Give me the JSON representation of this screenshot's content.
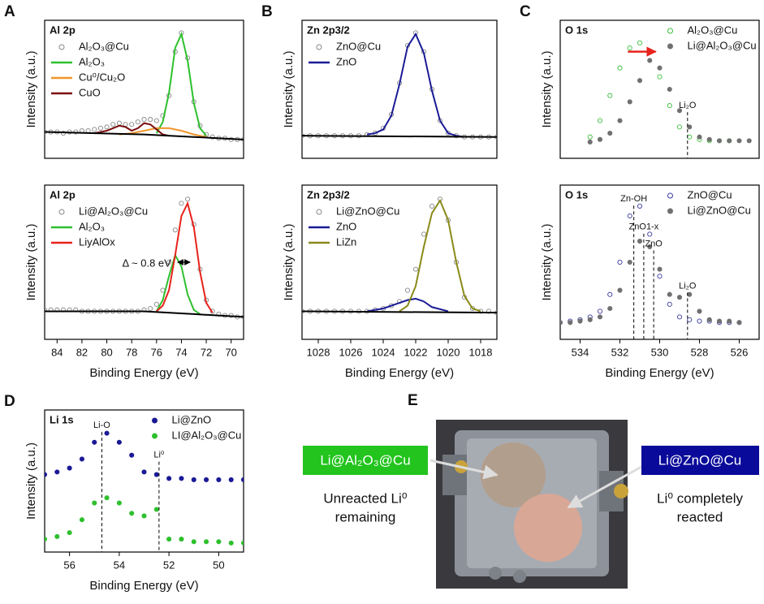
{
  "chart_data": [
    {
      "type": "line",
      "panel_label": "A",
      "title": "Al 2p",
      "y_label": "Intensity (a.u.)",
      "xlim": [
        85,
        69
      ],
      "ylim": [
        0,
        1.1
      ],
      "legend": "upper left",
      "series": [
        {
          "name": "Al₂O₃@Cu",
          "style": "open-circle",
          "color": "#888888",
          "x": [
            85,
            84.5,
            84,
            83.5,
            83,
            82.5,
            82,
            81.5,
            81,
            80.5,
            80,
            79.5,
            79,
            78.5,
            78,
            77.5,
            77,
            76.5,
            76,
            75.5,
            75,
            74.5,
            74,
            73.5,
            73,
            72.5,
            72,
            71.5,
            71,
            70.5,
            70,
            69.5,
            69
          ],
          "values": [
            0.21,
            0.21,
            0.21,
            0.2,
            0.21,
            0.21,
            0.22,
            0.22,
            0.23,
            0.24,
            0.25,
            0.27,
            0.28,
            0.27,
            0.27,
            0.29,
            0.31,
            0.31,
            0.3,
            0.34,
            0.5,
            0.85,
            1.0,
            0.8,
            0.45,
            0.26,
            0.19,
            0.17,
            0.16,
            0.16,
            0.15,
            0.15,
            0.15
          ]
        },
        {
          "name": "Al₂O₃",
          "style": "line",
          "color": "#2ec02e",
          "x": [
            76,
            75.5,
            75,
            74.5,
            74,
            73.5,
            73,
            72.5,
            72
          ],
          "values": [
            0.2,
            0.29,
            0.52,
            0.88,
            0.99,
            0.78,
            0.44,
            0.24,
            0.18
          ]
        },
        {
          "name": "Cu⁰/Cu₂O",
          "style": "line",
          "color": "#f0962a",
          "x": [
            79,
            78,
            77,
            76,
            75,
            74,
            73,
            72
          ],
          "values": [
            0.19,
            0.2,
            0.22,
            0.24,
            0.24,
            0.22,
            0.19,
            0.17
          ]
        },
        {
          "name": "CuO",
          "style": "line",
          "color": "#7a0c0c",
          "x": [
            81,
            80,
            79,
            78.5,
            78,
            77.5,
            77,
            76.5,
            76,
            75.5,
            75
          ],
          "values": [
            0.2,
            0.22,
            0.26,
            0.25,
            0.22,
            0.24,
            0.28,
            0.27,
            0.23,
            0.19,
            0.18
          ]
        },
        {
          "style": "line",
          "color": "#000000",
          "x": [
            85,
            77,
            73,
            69
          ],
          "values": [
            0.21,
            0.19,
            0.17,
            0.15
          ]
        }
      ]
    },
    {
      "type": "line",
      "title": "Al 2p",
      "y_label": "Intensity (a.u.)",
      "x_label": "Binding Energy (eV)",
      "xlim": [
        85,
        69
      ],
      "ylim": [
        0,
        1.1
      ],
      "xticks": [
        84,
        82,
        80,
        78,
        76,
        74,
        72,
        70
      ],
      "legend": "upper left",
      "series": [
        {
          "name": "Li@Al₂O₃@Cu",
          "style": "open-circle",
          "color": "#888888",
          "x": [
            85,
            84.5,
            84,
            83.5,
            83,
            82.5,
            82,
            81.5,
            81,
            80.5,
            80,
            79.5,
            79,
            78.5,
            78,
            77.5,
            77,
            76.5,
            76,
            75.5,
            75,
            74.5,
            74,
            73.5,
            73,
            72.5,
            72,
            71.5,
            71,
            70.5,
            70,
            69.5,
            69
          ],
          "values": [
            0.21,
            0.21,
            0.21,
            0.21,
            0.21,
            0.21,
            0.2,
            0.2,
            0.2,
            0.2,
            0.2,
            0.2,
            0.2,
            0.2,
            0.2,
            0.2,
            0.21,
            0.22,
            0.25,
            0.35,
            0.55,
            0.78,
            0.97,
            1.0,
            0.82,
            0.5,
            0.28,
            0.2,
            0.18,
            0.17,
            0.17,
            0.16,
            0.16
          ]
        },
        {
          "name": "Al₂O₃",
          "style": "line",
          "color": "#2ec02e",
          "x": [
            76,
            75.5,
            75,
            74.5,
            74,
            73.5,
            73,
            72.5
          ],
          "values": [
            0.2,
            0.28,
            0.45,
            0.6,
            0.52,
            0.32,
            0.21,
            0.18
          ]
        },
        {
          "name": "LiyAlOx",
          "style": "line",
          "color": "#e8221c",
          "x": [
            76,
            75.5,
            75,
            74.5,
            74,
            73.5,
            73,
            72.5,
            72,
            71.5
          ],
          "values": [
            0.2,
            0.24,
            0.35,
            0.6,
            0.88,
            0.97,
            0.8,
            0.48,
            0.26,
            0.19
          ]
        },
        {
          "style": "line",
          "color": "#000000",
          "x": [
            85,
            77,
            73,
            69
          ],
          "values": [
            0.2,
            0.2,
            0.18,
            0.16
          ]
        }
      ],
      "annotations": [
        {
          "text": "Δ ~ 0.8 eV",
          "x": [
            74.3,
            73.3
          ],
          "y": 0.55,
          "arrow": "double",
          "color": "#000000"
        }
      ]
    },
    {
      "type": "line",
      "panel_label": "B",
      "title": "Zn 2p3/2",
      "y_label": "Intensity (a.u.)",
      "xlim": [
        1029,
        1017
      ],
      "ylim": [
        0,
        1.1
      ],
      "legend": "upper left",
      "series": [
        {
          "name": "ZnO@Cu",
          "style": "open-circle",
          "color": "#888888",
          "x": [
            1029,
            1028.5,
            1028,
            1027.5,
            1027,
            1026.5,
            1026,
            1025.5,
            1025,
            1024.5,
            1024,
            1023.5,
            1023,
            1022.5,
            1022,
            1021.5,
            1021,
            1020.5,
            1020,
            1019.5,
            1019,
            1018.5,
            1018,
            1017.5,
            1017
          ],
          "values": [
            0.18,
            0.18,
            0.18,
            0.18,
            0.18,
            0.18,
            0.18,
            0.18,
            0.19,
            0.2,
            0.24,
            0.35,
            0.6,
            0.9,
            1.0,
            0.85,
            0.55,
            0.3,
            0.2,
            0.18,
            0.17,
            0.17,
            0.17,
            0.17,
            0.17
          ]
        },
        {
          "name": "ZnO",
          "style": "line",
          "color": "#1a1a96",
          "x": [
            1025,
            1024.5,
            1024,
            1023.5,
            1023,
            1022.5,
            1022,
            1021.5,
            1021,
            1020.5,
            1020,
            1019.5,
            1019
          ],
          "values": [
            0.19,
            0.2,
            0.23,
            0.34,
            0.59,
            0.89,
            0.99,
            0.84,
            0.54,
            0.3,
            0.2,
            0.18,
            0.17
          ]
        },
        {
          "style": "line",
          "color": "#000000",
          "x": [
            1029,
            1017
          ],
          "values": [
            0.18,
            0.17
          ]
        }
      ]
    },
    {
      "type": "line",
      "title": "Zn 2p3/2",
      "y_label": "Intensity (a.u.)",
      "x_label": "Binding Energy (eV)",
      "xlim": [
        1029,
        1017
      ],
      "ylim": [
        0,
        1.1
      ],
      "xticks": [
        1028,
        1026,
        1024,
        1022,
        1020,
        1018
      ],
      "legend": "upper left",
      "series": [
        {
          "name": "Li@ZnO@Cu",
          "style": "open-circle",
          "color": "#888888",
          "x": [
            1029,
            1028.5,
            1028,
            1027.5,
            1027,
            1026.5,
            1026,
            1025.5,
            1025,
            1024.5,
            1024,
            1023.5,
            1023,
            1022.5,
            1022,
            1021.5,
            1021,
            1020.5,
            1020,
            1019.5,
            1019,
            1018.5,
            1018,
            1017.5,
            1017
          ],
          "values": [
            0.2,
            0.2,
            0.2,
            0.2,
            0.2,
            0.2,
            0.2,
            0.2,
            0.2,
            0.21,
            0.22,
            0.24,
            0.27,
            0.35,
            0.5,
            0.75,
            0.95,
            1.0,
            0.85,
            0.55,
            0.3,
            0.22,
            0.2,
            0.2,
            0.19
          ]
        },
        {
          "name": "ZnO",
          "style": "line",
          "color": "#1a1a96",
          "x": [
            1025,
            1024,
            1023,
            1022.5,
            1022,
            1021.5,
            1021,
            1020
          ],
          "values": [
            0.2,
            0.22,
            0.26,
            0.28,
            0.29,
            0.27,
            0.23,
            0.2
          ]
        },
        {
          "name": "LiZn",
          "style": "line",
          "color": "#8a8a1a",
          "x": [
            1023,
            1022.5,
            1022,
            1021.5,
            1021,
            1020.5,
            1020,
            1019.5,
            1019,
            1018.5,
            1018
          ],
          "values": [
            0.2,
            0.24,
            0.38,
            0.66,
            0.9,
            0.99,
            0.85,
            0.55,
            0.31,
            0.22,
            0.2
          ]
        },
        {
          "style": "line",
          "color": "#000000",
          "x": [
            1029,
            1017
          ],
          "values": [
            0.2,
            0.19
          ]
        }
      ]
    },
    {
      "type": "line",
      "panel_label": "C",
      "title": "O 1s",
      "y_label": "Intensity (a.u.)",
      "xlim": [
        535,
        525
      ],
      "ylim": [
        0,
        1.1
      ],
      "legend": "upper right",
      "series": [
        {
          "name": "Al₂O₃@Cu",
          "style": "open-circle",
          "color": "#3cbf3c",
          "x": [
            533.5,
            533,
            532.5,
            532,
            531.5,
            531,
            530.5,
            530,
            529.5,
            529,
            528.5,
            528,
            527.5,
            527,
            526.5
          ],
          "values": [
            0.17,
            0.3,
            0.5,
            0.72,
            0.88,
            0.92,
            0.85,
            0.65,
            0.42,
            0.25,
            0.17,
            0.15,
            0.14,
            0.14,
            0.14
          ]
        },
        {
          "name": "Li@Al₂O₃@Cu",
          "style": "filled-circle",
          "color": "#707070",
          "x": [
            533.5,
            533,
            532.5,
            532,
            531.5,
            531,
            530.5,
            530,
            529.5,
            529,
            528.5,
            528,
            527.5,
            527,
            526.5,
            526,
            525.5
          ],
          "values": [
            0.13,
            0.15,
            0.2,
            0.3,
            0.45,
            0.62,
            0.78,
            0.72,
            0.55,
            0.38,
            0.25,
            0.17,
            0.15,
            0.14,
            0.14,
            0.14,
            0.14
          ]
        }
      ],
      "annotations": [
        {
          "x": [
            531.6,
            530.2
          ],
          "y": 0.85,
          "arrow": "single",
          "color": "#e8221c"
        },
        {
          "text": "Li₂O",
          "x": 528.6,
          "y": 0.42
        }
      ]
    },
    {
      "type": "line",
      "title": "O 1s",
      "y_label": "Intensity (a.u.)",
      "x_label": "Binding Energy (eV)",
      "xlim": [
        535,
        525
      ],
      "ylim": [
        0,
        1.1
      ],
      "xticks": [
        534,
        532,
        530,
        528,
        526
      ],
      "legend": "upper right",
      "series": [
        {
          "name": "ZnO@Cu",
          "style": "open-circle",
          "color": "#3a3aa0",
          "x": [
            535,
            534.5,
            534,
            533.5,
            533,
            532.5,
            532,
            531.5,
            531,
            530.5,
            530,
            529.5,
            529,
            528.5,
            528,
            527.5,
            527,
            526.5,
            526
          ],
          "values": [
            0.12,
            0.13,
            0.14,
            0.16,
            0.2,
            0.32,
            0.55,
            0.88,
            0.95,
            0.75,
            0.45,
            0.25,
            0.16,
            0.14,
            0.13,
            0.13,
            0.12,
            0.12,
            0.12
          ]
        },
        {
          "name": "Li@ZnO@Cu",
          "style": "filled-circle",
          "color": "#707070",
          "x": [
            535,
            534.5,
            534,
            533.5,
            533,
            532.5,
            532,
            531.5,
            531,
            530.5,
            530,
            529.5,
            529,
            528.5,
            528,
            527.5,
            527,
            526.5,
            526
          ],
          "values": [
            0.12,
            0.12,
            0.13,
            0.14,
            0.16,
            0.22,
            0.35,
            0.55,
            0.7,
            0.66,
            0.5,
            0.32,
            0.3,
            0.32,
            0.2,
            0.14,
            0.13,
            0.13,
            0.12
          ]
        }
      ],
      "annotations": [
        {
          "text": "Zn-OH",
          "x": 531.3,
          "y": 1.0
        },
        {
          "text": "ZnO1-x",
          "x": 530.8,
          "y": 0.8
        },
        {
          "text": "ZnO",
          "x": 530.3,
          "y": 0.68
        },
        {
          "text": "Li₂O",
          "x": 528.6,
          "y": 0.38
        }
      ]
    },
    {
      "type": "line",
      "panel_label": "D",
      "title": "Li 1s",
      "y_label": "Intensity (a.u.)",
      "x_label": "Binding Energy (eV)",
      "xlim": [
        57,
        49
      ],
      "ylim": [
        0,
        1.1
      ],
      "xticks": [
        56,
        54,
        52,
        50
      ],
      "legend": "upper right",
      "series": [
        {
          "name": "Li@ZnO",
          "style": "filled-circle",
          "color": "#1a1a96",
          "x": [
            57,
            56.5,
            56,
            55.5,
            55,
            54.5,
            54,
            53.5,
            53,
            52.5,
            52,
            51.5,
            51,
            50.5,
            50,
            49.5,
            49
          ],
          "values": [
            0.6,
            0.62,
            0.65,
            0.72,
            0.85,
            0.92,
            0.85,
            0.75,
            0.62,
            0.6,
            0.57,
            0.57,
            0.56,
            0.56,
            0.56,
            0.56,
            0.56
          ]
        },
        {
          "name": "LI@Al₂O₃@Cu",
          "style": "filled-circle",
          "color": "#2ec02e",
          "x": [
            57,
            56.5,
            56,
            55.5,
            55,
            54.5,
            54,
            53.5,
            53,
            52.5,
            52,
            51.5,
            51,
            50.5,
            50,
            49.5,
            49
          ],
          "values": [
            0.1,
            0.12,
            0.15,
            0.25,
            0.38,
            0.42,
            0.38,
            0.3,
            0.28,
            0.33,
            0.1,
            0.1,
            0.08,
            0.08,
            0.08,
            0.07,
            0.07
          ]
        }
      ],
      "annotations": [
        {
          "text": "Li-O",
          "x": 54.7,
          "y": 0.98
        },
        {
          "text": "Li⁰",
          "x": 52.4,
          "y": 0.75
        }
      ]
    }
  ],
  "photo_panel": {
    "panel_label": "E",
    "left_label": "Li@Al₂O₃@Cu",
    "left_caption": [
      "Unreacted Li⁰",
      "remaining"
    ],
    "right_label": "Li@ZnO@Cu",
    "right_caption": [
      "Li⁰ completely",
      "reacted"
    ]
  }
}
